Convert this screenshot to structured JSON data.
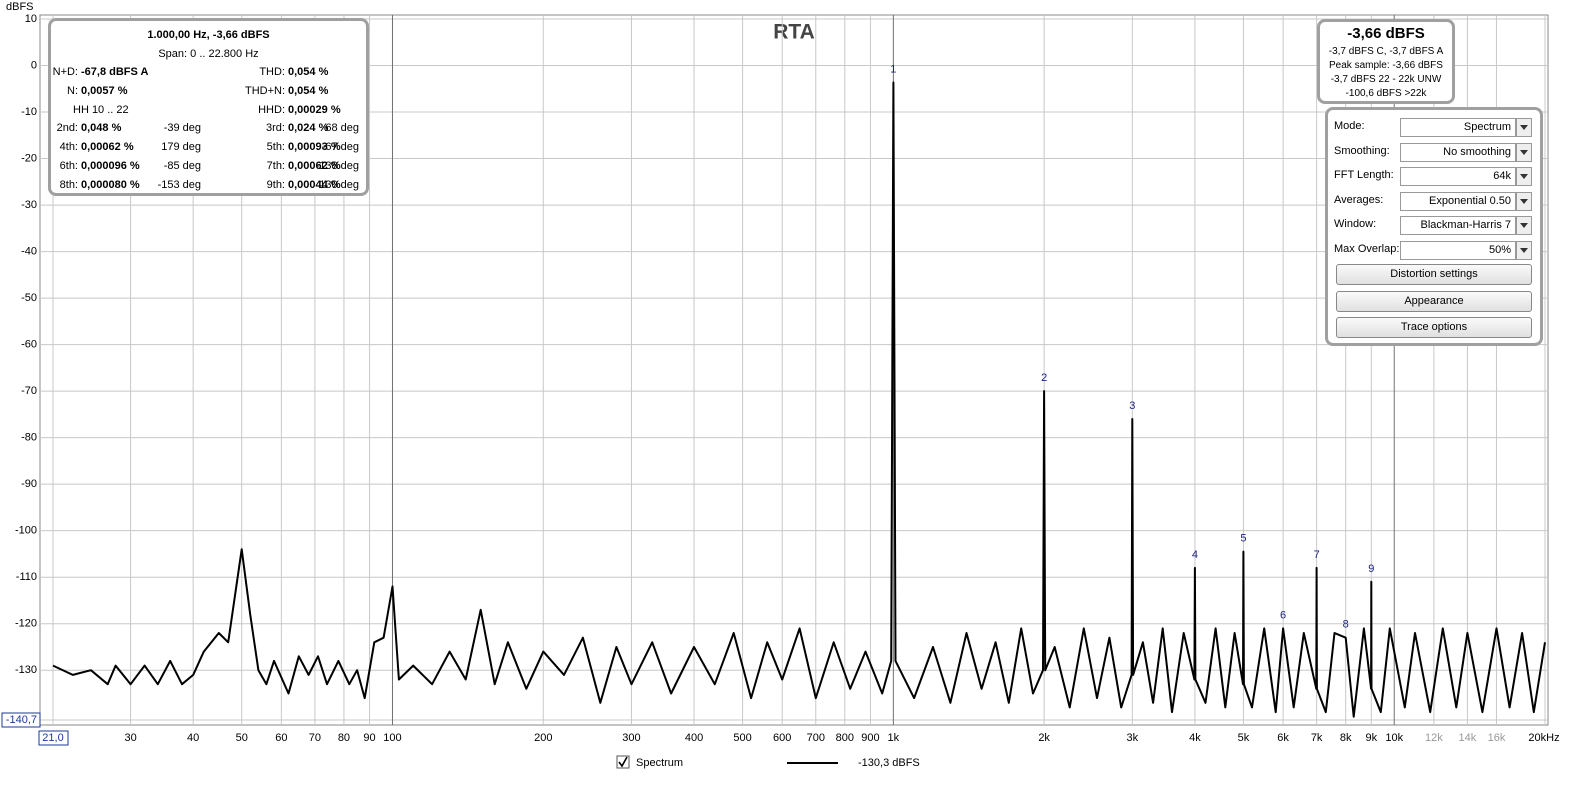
{
  "chart_data": {
    "type": "line",
    "title": "RTA",
    "y_label": "dBFS",
    "x_log": true,
    "grid": true,
    "xlim": [
      21,
      20000
    ],
    "ylim": [
      -140.7,
      10
    ],
    "xticks": [
      {
        "value": 21,
        "label": "21,0"
      },
      30,
      40,
      50,
      60,
      70,
      80,
      90,
      100,
      200,
      300,
      400,
      500,
      600,
      700,
      800,
      900,
      {
        "value": 1000,
        "label": "1k"
      },
      {
        "value": 2000,
        "label": "2k"
      },
      {
        "value": 3000,
        "label": "3k"
      },
      {
        "value": 4000,
        "label": "4k"
      },
      {
        "value": 5000,
        "label": "5k"
      },
      {
        "value": 6000,
        "label": "6k"
      },
      {
        "value": 7000,
        "label": "7k"
      },
      {
        "value": 8000,
        "label": "8k"
      },
      {
        "value": 9000,
        "label": "9k"
      },
      {
        "value": 10000,
        "label": "10k"
      },
      {
        "value": 12000,
        "label": "12k"
      },
      {
        "value": 14000,
        "label": "14k"
      },
      {
        "value": 16000,
        "label": "16k"
      },
      {
        "value": 20000,
        "label": "20kHz"
      }
    ],
    "yticks": [
      10,
      0,
      -10,
      -20,
      -30,
      -40,
      -50,
      -60,
      -70,
      -80,
      -90,
      -100,
      -110,
      -120,
      -130,
      {
        "value": -140.7,
        "label": "-140,7"
      }
    ],
    "series": [
      {
        "name": "Spectrum",
        "color": "#000000",
        "x": [
          21,
          23,
          25,
          27,
          28,
          30,
          32,
          34,
          36,
          38,
          40,
          42,
          45,
          47,
          50,
          52,
          54,
          56,
          58,
          62,
          65,
          68,
          71,
          74,
          78,
          82,
          85,
          88,
          92,
          96,
          100,
          103,
          110,
          120,
          130,
          140,
          150,
          160,
          170,
          185,
          200,
          220,
          240,
          260,
          280,
          300,
          330,
          360,
          400,
          440,
          480,
          520,
          560,
          600,
          650,
          700,
          760,
          820,
          880,
          950,
          990,
          1000,
          1010,
          1100,
          1200,
          1300,
          1400,
          1500,
          1600,
          1700,
          1800,
          1900,
          1990,
          2000,
          2010,
          2100,
          2250,
          2400,
          2550,
          2700,
          2850,
          2990,
          3000,
          3010,
          3150,
          3300,
          3450,
          3600,
          3800,
          3990,
          4000,
          4010,
          4200,
          4400,
          4600,
          4800,
          4990,
          5000,
          5010,
          5200,
          5500,
          5800,
          6000,
          6300,
          6600,
          6990,
          7000,
          7010,
          7300,
          7600,
          8000,
          8300,
          8700,
          8990,
          9000,
          9010,
          9400,
          9800,
          10500,
          11000,
          11800,
          12500,
          13300,
          14000,
          15000,
          16000,
          17000,
          18000,
          19000,
          20000
        ],
        "values": [
          -129,
          -131,
          -130,
          -133,
          -129,
          -133,
          -129,
          -133,
          -128,
          -133,
          -131,
          -126,
          -122,
          -124,
          -104,
          -118,
          -130,
          -133,
          -128,
          -135,
          -127,
          -131,
          -127,
          -133,
          -128,
          -133,
          -130,
          -136,
          -124,
          -123,
          -112,
          -132,
          -129,
          -133,
          -126,
          -132,
          -117,
          -133,
          -124,
          -134,
          -126,
          -131,
          -123,
          -137,
          -125,
          -133,
          -124,
          -135,
          -125,
          -133,
          -122,
          -136,
          -124,
          -132,
          -121,
          -136,
          -124,
          -134,
          -126,
          -135,
          -128,
          -3.66,
          -128,
          -136,
          -125,
          -137,
          -122,
          -134,
          -124,
          -137,
          -121,
          -135,
          -130,
          -70,
          -130,
          -125,
          -138,
          -121,
          -136,
          -123,
          -138,
          -131,
          -76,
          -131,
          -124,
          -137,
          -121,
          -139,
          -122,
          -132,
          -108,
          -132,
          -137,
          -121,
          -138,
          -122,
          -133,
          -104.5,
          -133,
          -138,
          -121,
          -139,
          -121,
          -138,
          -122,
          -134,
          -108,
          -134,
          -139,
          -122,
          -123,
          -140,
          -121,
          -134,
          -111,
          -134,
          -139,
          -121,
          -138,
          -122,
          -139,
          -121,
          -138,
          -122,
          -139,
          -121,
          -138,
          -122,
          -139,
          -124
        ]
      }
    ],
    "harmonic_labels": [
      {
        "label": "1",
        "x": 1000,
        "value": -3.66
      },
      {
        "label": "2",
        "x": 2000,
        "value": -70
      },
      {
        "label": "3",
        "x": 3000,
        "value": -76
      },
      {
        "label": "4",
        "x": 4000,
        "value": -108
      },
      {
        "label": "5",
        "x": 5000,
        "value": -104.5
      },
      {
        "label": "6",
        "x": 6000,
        "value": -121
      },
      {
        "label": "7",
        "x": 7000,
        "value": -108
      },
      {
        "label": "8",
        "x": 8000,
        "value": -123
      },
      {
        "label": "9",
        "x": 9000,
        "value": -111
      }
    ],
    "legend_value": "-130,3 dBFS"
  },
  "distortion_panel": {
    "header": "1.000,00 Hz, -3,66 dBFS",
    "span": "Span: 0 .. 22.800 Hz",
    "rows": [
      {
        "left": {
          "label": "N+D:",
          "value": "-67,8 dBFS A"
        },
        "right": {
          "label": "THD:",
          "value": "0,054 %"
        }
      },
      {
        "left": {
          "label": "N:",
          "value": "0,0057 %"
        },
        "right": {
          "label": "THD+N:",
          "value": "0,054 %"
        }
      },
      {
        "left": {
          "label": "HH 10 .. 22"
        },
        "right": {
          "label": "HHD:",
          "value": "0,00029 %"
        }
      },
      {
        "left": {
          "label": "2nd:",
          "value": "0,048 %",
          "phase": "-39 deg"
        },
        "right": {
          "label": "3rd:",
          "value": "0,024 %",
          "phase": "68 deg"
        }
      },
      {
        "left": {
          "label": "4th:",
          "value": "0,00062 %",
          "phase": "179 deg"
        },
        "right": {
          "label": "5th:",
          "value": "0,00093 %",
          "phase": "-67 deg"
        }
      },
      {
        "left": {
          "label": "6th:",
          "value": "0,000096 %",
          "phase": "-85 deg"
        },
        "right": {
          "label": "7th:",
          "value": "0,00062 %",
          "phase": "-138 deg"
        }
      },
      {
        "left": {
          "label": "8th:",
          "value": "0,000080 %",
          "phase": "-153 deg"
        },
        "right": {
          "label": "9th:",
          "value": "0,00044 %",
          "phase": "130 deg"
        }
      }
    ]
  },
  "level_panel": {
    "main": "-3,66 dBFS",
    "lines": [
      "-3,7 dBFS C, -3,7 dBFS A",
      "Peak sample: -3,66 dBFS",
      "-3,7 dBFS 22 - 22k UNW",
      "-100,6 dBFS >22k"
    ]
  },
  "controls": {
    "fields": [
      {
        "label": "Mode:",
        "value": "Spectrum"
      },
      {
        "label": "Smoothing:",
        "value": "No  smoothing"
      },
      {
        "label": "FFT Length:",
        "value": "64k"
      },
      {
        "label": "Averages:",
        "value": "Exponential 0.50"
      },
      {
        "label": "Window:",
        "value": "Blackman-Harris 7"
      },
      {
        "label": "Max Overlap:",
        "value": "50%"
      }
    ],
    "buttons": [
      "Distortion settings",
      "Appearance",
      "Trace options"
    ]
  }
}
